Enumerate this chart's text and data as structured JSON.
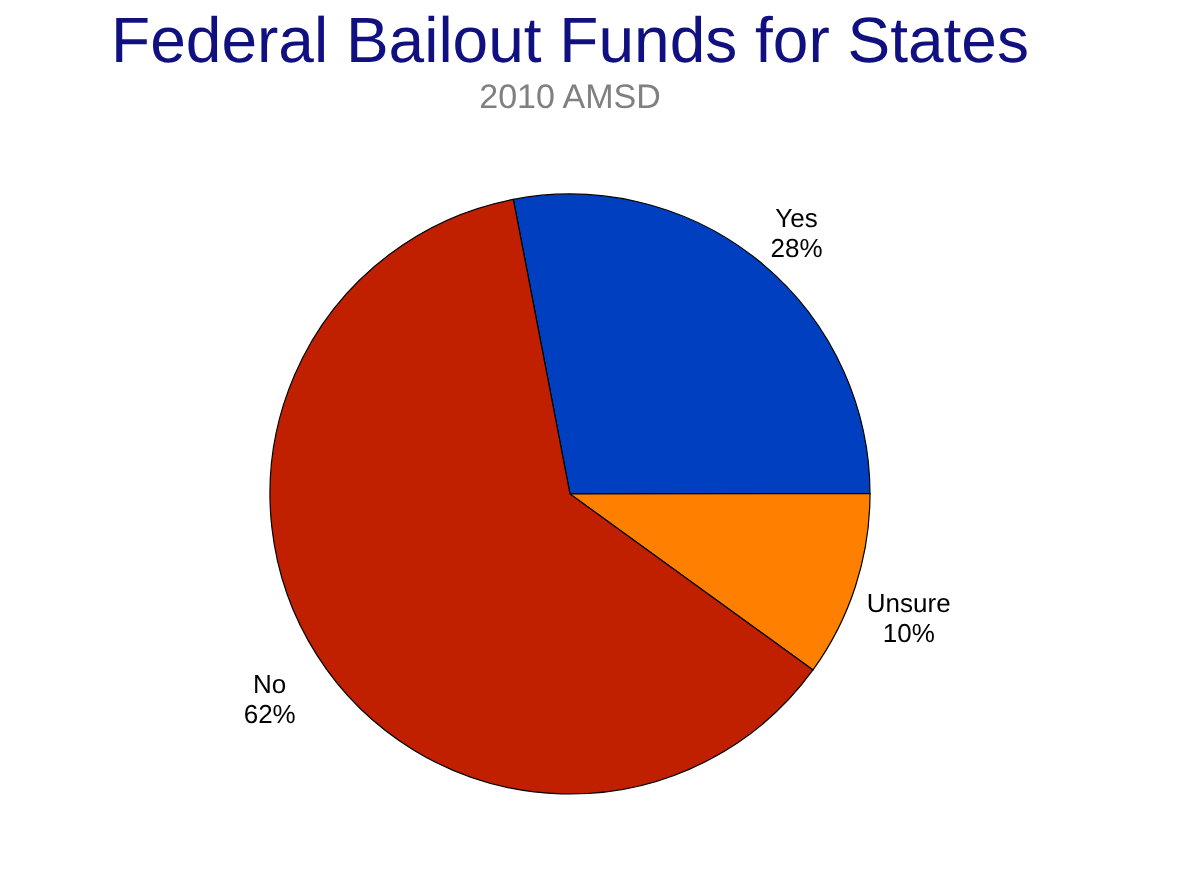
{
  "chart_data": {
    "type": "pie",
    "title": "Federal Bailout Funds for States",
    "subtitle": "2010 AMSD",
    "categories": [
      "Yes",
      "Unsure",
      "No"
    ],
    "values": [
      28,
      10,
      62
    ],
    "value_labels": [
      "28%",
      "10%",
      "62%"
    ],
    "colors": [
      "#0040c0",
      "#ff8000",
      "#c02000"
    ],
    "legend": false
  }
}
